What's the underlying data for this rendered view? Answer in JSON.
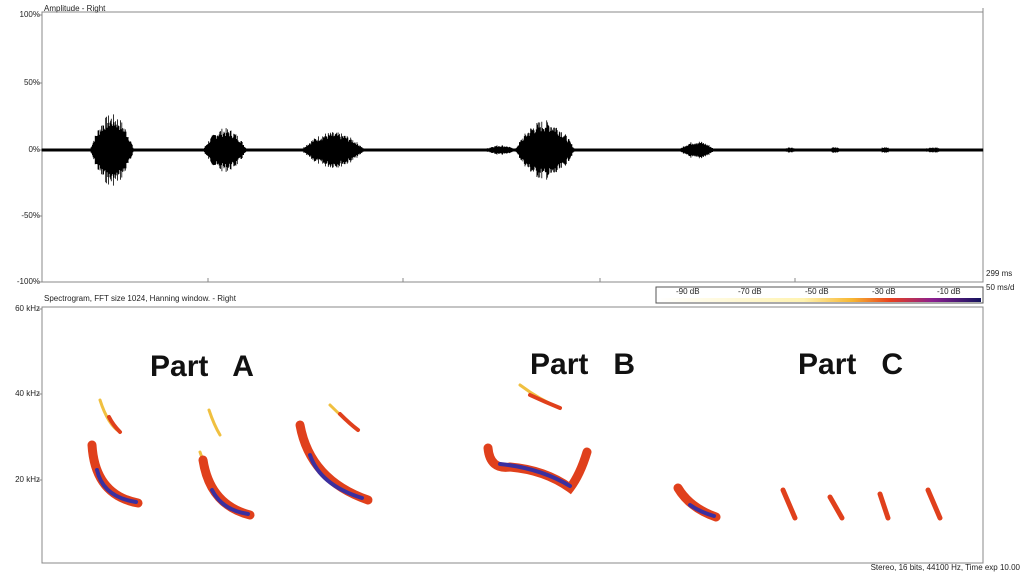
{
  "waveform": {
    "title": "Amplitude - Right",
    "yticks": [
      "100%",
      "50%",
      "0%",
      "-50%",
      "-100%"
    ]
  },
  "time_info": {
    "window": "299 ms",
    "scale": "50 ms/d"
  },
  "spectrogram": {
    "title": "Spectrogram, FFT size 1024, Hanning window. - Right",
    "yticks": [
      "60 kHz",
      "40 kHz",
      "20 kHz"
    ],
    "color_scale": [
      "-90 dB",
      "-70 dB",
      "-50 dB",
      "-30 dB",
      "-10 dB"
    ],
    "annotations": [
      "Part   A",
      "Part   B",
      "Part   C"
    ]
  },
  "status": "Stereo, 16 bits, 44100 Hz, Time exp 10.00"
}
